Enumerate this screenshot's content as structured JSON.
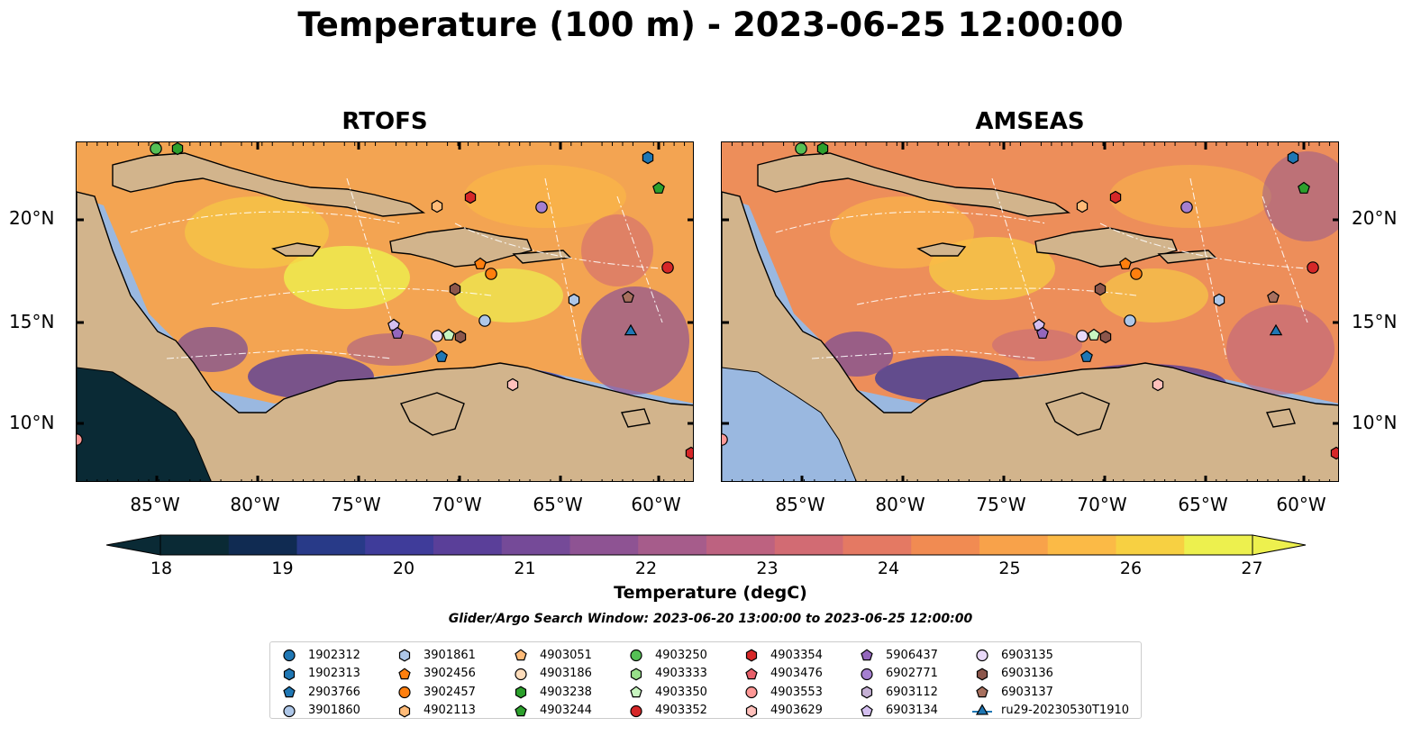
{
  "figure": {
    "title": "Temperature (100 m) - 2023-06-25 12:00:00",
    "colorbar_label": "Temperature (degC)",
    "colorbar_ticks": [
      "18",
      "19",
      "20",
      "21",
      "22",
      "23",
      "24",
      "25",
      "26",
      "27"
    ],
    "search_window": "Glider/Argo Search Window: 2023-06-20 13:00:00 to 2023-06-25 12:00:00"
  },
  "axes": {
    "lat_labels": [
      "20°N",
      "15°N",
      "10°N"
    ],
    "lon_labels": [
      "85°W",
      "80°W",
      "75°W",
      "70°W",
      "65°W",
      "60°W"
    ]
  },
  "panels": [
    {
      "title": "RTOFS"
    },
    {
      "title": "AMSEAS"
    }
  ],
  "colors": {
    "land": "#d2b48c",
    "water": "#9ab8e0",
    "colormap": [
      "#0a2a35",
      "#102b52",
      "#283a88",
      "#3f3c9a",
      "#5a3f99",
      "#754a98",
      "#8e5393",
      "#a65c8b",
      "#bd6280",
      "#d26b73",
      "#e47963",
      "#f18b52",
      "#f8a24a",
      "#fbba46",
      "#f7d042",
      "#edf04e"
    ]
  },
  "legend": [
    {
      "id": "1902312",
      "marker": "circle",
      "color": "#1f77b4"
    },
    {
      "id": "1902313",
      "marker": "hexagon",
      "color": "#1f77b4"
    },
    {
      "id": "2903766",
      "marker": "pentagon",
      "color": "#1f77b4"
    },
    {
      "id": "3901860",
      "marker": "circle",
      "color": "#aec7e8"
    },
    {
      "id": "3901861",
      "marker": "hexagon",
      "color": "#aec7e8"
    },
    {
      "id": "3902456",
      "marker": "pentagon",
      "color": "#ff7f0e"
    },
    {
      "id": "3902457",
      "marker": "circle",
      "color": "#ff7f0e"
    },
    {
      "id": "4902113",
      "marker": "hexagon",
      "color": "#ffbb78"
    },
    {
      "id": "4903051",
      "marker": "pentagon",
      "color": "#ffbb78"
    },
    {
      "id": "4903186",
      "marker": "circle",
      "color": "#ffddbb"
    },
    {
      "id": "4903238",
      "marker": "hexagon",
      "color": "#2ca02c"
    },
    {
      "id": "4903244",
      "marker": "pentagon",
      "color": "#2ca02c"
    },
    {
      "id": "4903250",
      "marker": "circle",
      "color": "#55c055"
    },
    {
      "id": "4903333",
      "marker": "hexagon",
      "color": "#98df8a"
    },
    {
      "id": "4903350",
      "marker": "pentagon",
      "color": "#c8f5c0"
    },
    {
      "id": "4903352",
      "marker": "circle",
      "color": "#d62728"
    },
    {
      "id": "4903354",
      "marker": "hexagon",
      "color": "#d62728"
    },
    {
      "id": "4903476",
      "marker": "pentagon",
      "color": "#e8606a"
    },
    {
      "id": "4903553",
      "marker": "circle",
      "color": "#ff9896"
    },
    {
      "id": "4903629",
      "marker": "hexagon",
      "color": "#ffc0bb"
    },
    {
      "id": "5906437",
      "marker": "pentagon",
      "color": "#9467bd"
    },
    {
      "id": "6902771",
      "marker": "circle",
      "color": "#a57fd0"
    },
    {
      "id": "6903112",
      "marker": "hexagon",
      "color": "#c5b0d5"
    },
    {
      "id": "6903134",
      "marker": "pentagon",
      "color": "#d4bff0"
    },
    {
      "id": "6903135",
      "marker": "circle",
      "color": "#e8d8f8"
    },
    {
      "id": "6903136",
      "marker": "hexagon",
      "color": "#8c564b"
    },
    {
      "id": "6903137",
      "marker": "pentagon",
      "color": "#a8705e"
    },
    {
      "id": "ru29-20230530T1910",
      "marker": "triangle",
      "color": "#1f77b4"
    }
  ]
}
